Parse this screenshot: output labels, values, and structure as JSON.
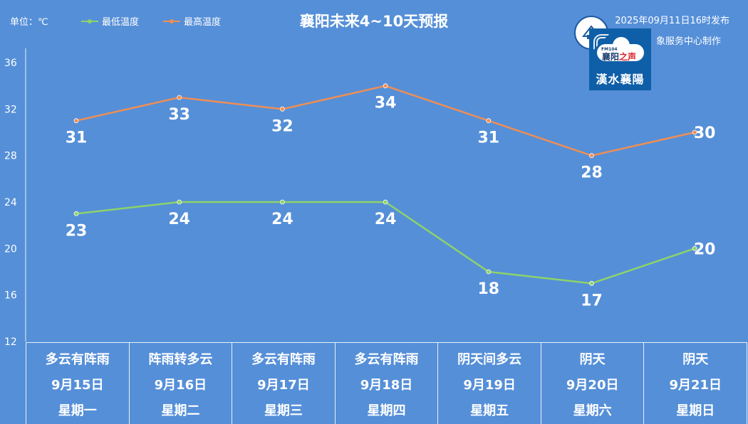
{
  "header": {
    "unit": "单位：℃",
    "title": "襄阳未来4~10天预报",
    "publish": "2025年09月11日16时发布",
    "producer": "象服务中心制作"
  },
  "logo": {
    "fm": "FM104",
    "name_a": "襄阳",
    "name_b": "之声",
    "sub": "漢水襄陽"
  },
  "legend": [
    {
      "name": "最低温度",
      "color": "#8ed36a"
    },
    {
      "name": "最高温度",
      "color": "#ef8e54"
    }
  ],
  "days": [
    {
      "weather": "多云有阵雨",
      "date": "9月15日",
      "weekday": "星期一"
    },
    {
      "weather": "阵雨转多云",
      "date": "9月16日",
      "weekday": "星期二"
    },
    {
      "weather": "多云有阵雨",
      "date": "9月17日",
      "weekday": "星期三"
    },
    {
      "weather": "多云有阵雨",
      "date": "9月18日",
      "weekday": "星期四"
    },
    {
      "weather": "阴天间多云",
      "date": "9月19日",
      "weekday": "星期五"
    },
    {
      "weather": "阴天",
      "date": "9月20日",
      "weekday": "星期六"
    },
    {
      "weather": "阴天",
      "date": "9月21日",
      "weekday": "星期日"
    }
  ],
  "chart_data": {
    "type": "line",
    "categories": [
      "9月15日",
      "9月16日",
      "9月17日",
      "9月18日",
      "9月19日",
      "9月20日",
      "9月21日"
    ],
    "series": [
      {
        "name": "最低温度",
        "values": [
          23,
          24,
          24,
          24,
          18,
          17,
          20
        ],
        "color": "#8ed36a"
      },
      {
        "name": "最高温度",
        "values": [
          31,
          33,
          32,
          34,
          31,
          28,
          30
        ],
        "color": "#ef8e54"
      }
    ],
    "ylim": [
      12,
      36
    ],
    "yticks": [
      12,
      16,
      20,
      24,
      28,
      32,
      36
    ],
    "title": "襄阳未来4~10天预报",
    "ylabel": "单位：℃",
    "grid": false,
    "legend_position": "top-left"
  }
}
